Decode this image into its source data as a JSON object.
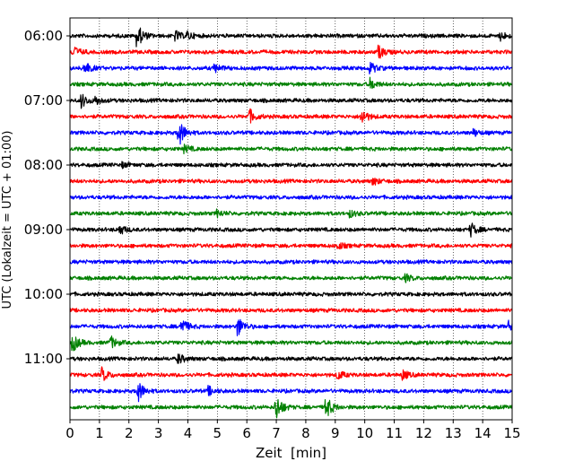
{
  "chart_data": {
    "type": "line",
    "title": "",
    "xlabel": "Zeit  [min]",
    "ylabel": "UTC (Lokalzeit = UTC + 01:00)",
    "xlim": [
      0,
      15
    ],
    "xticks": [
      "0",
      "1",
      "2",
      "3",
      "4",
      "5",
      "6",
      "7",
      "8",
      "9",
      "10",
      "11",
      "12",
      "13",
      "14",
      "15"
    ],
    "yticks": [
      "06:00",
      "07:00",
      "08:00",
      "09:00",
      "10:00",
      "11:00"
    ],
    "grid": "vertical dotted",
    "row_minutes": 15,
    "colors": [
      "#000000",
      "#ff0000",
      "#0000ff",
      "#008000"
    ],
    "rows": [
      {
        "start": "06:00",
        "events": [
          [
            2.3,
            1.0
          ],
          [
            3.6,
            0.4
          ],
          [
            4.0,
            0.3
          ],
          [
            14.6,
            0.4
          ]
        ]
      },
      {
        "start": "06:15",
        "events": [
          [
            0.1,
            0.6
          ],
          [
            10.5,
            0.5
          ]
        ]
      },
      {
        "start": "06:30",
        "events": [
          [
            0.5,
            0.6
          ],
          [
            4.9,
            0.4
          ],
          [
            10.2,
            0.5
          ]
        ]
      },
      {
        "start": "06:45",
        "events": [
          [
            10.2,
            0.5
          ]
        ]
      },
      {
        "start": "07:00",
        "events": [
          [
            0.4,
            0.6
          ],
          [
            0.9,
            0.3
          ]
        ]
      },
      {
        "start": "07:15",
        "events": [
          [
            6.1,
            0.6
          ],
          [
            9.9,
            0.7
          ]
        ]
      },
      {
        "start": "07:30",
        "events": [
          [
            3.7,
            1.2
          ],
          [
            13.7,
            0.3
          ]
        ]
      },
      {
        "start": "07:45",
        "events": [
          [
            3.9,
            0.3
          ]
        ]
      },
      {
        "start": "08:00",
        "events": [
          [
            1.8,
            0.2
          ]
        ]
      },
      {
        "start": "08:15",
        "events": [
          [
            10.3,
            0.3
          ]
        ]
      },
      {
        "start": "08:30",
        "events": []
      },
      {
        "start": "08:45",
        "events": [
          [
            5.0,
            0.3
          ],
          [
            9.5,
            0.3
          ]
        ]
      },
      {
        "start": "09:00",
        "events": [
          [
            1.7,
            0.4
          ],
          [
            13.6,
            0.6
          ]
        ]
      },
      {
        "start": "09:15",
        "events": [
          [
            9.1,
            0.3
          ]
        ]
      },
      {
        "start": "09:30",
        "events": []
      },
      {
        "start": "09:45",
        "events": [
          [
            11.4,
            0.3
          ]
        ]
      },
      {
        "start": "10:00",
        "events": []
      },
      {
        "start": "10:15",
        "events": []
      },
      {
        "start": "10:30",
        "events": [
          [
            3.8,
            0.7
          ],
          [
            5.7,
            0.9
          ],
          [
            14.9,
            0.4
          ]
        ]
      },
      {
        "start": "10:45",
        "events": [
          [
            0.1,
            0.8
          ],
          [
            1.4,
            0.5
          ]
        ]
      },
      {
        "start": "11:00",
        "events": [
          [
            3.7,
            0.4
          ]
        ]
      },
      {
        "start": "11:15",
        "events": [
          [
            1.1,
            0.6
          ],
          [
            9.1,
            0.4
          ],
          [
            11.3,
            0.4
          ]
        ]
      },
      {
        "start": "11:30",
        "events": [
          [
            2.3,
            1.0
          ],
          [
            4.7,
            0.4
          ]
        ]
      },
      {
        "start": "11:45",
        "events": [
          [
            7.0,
            1.2
          ],
          [
            8.7,
            1.0
          ]
        ]
      }
    ]
  }
}
